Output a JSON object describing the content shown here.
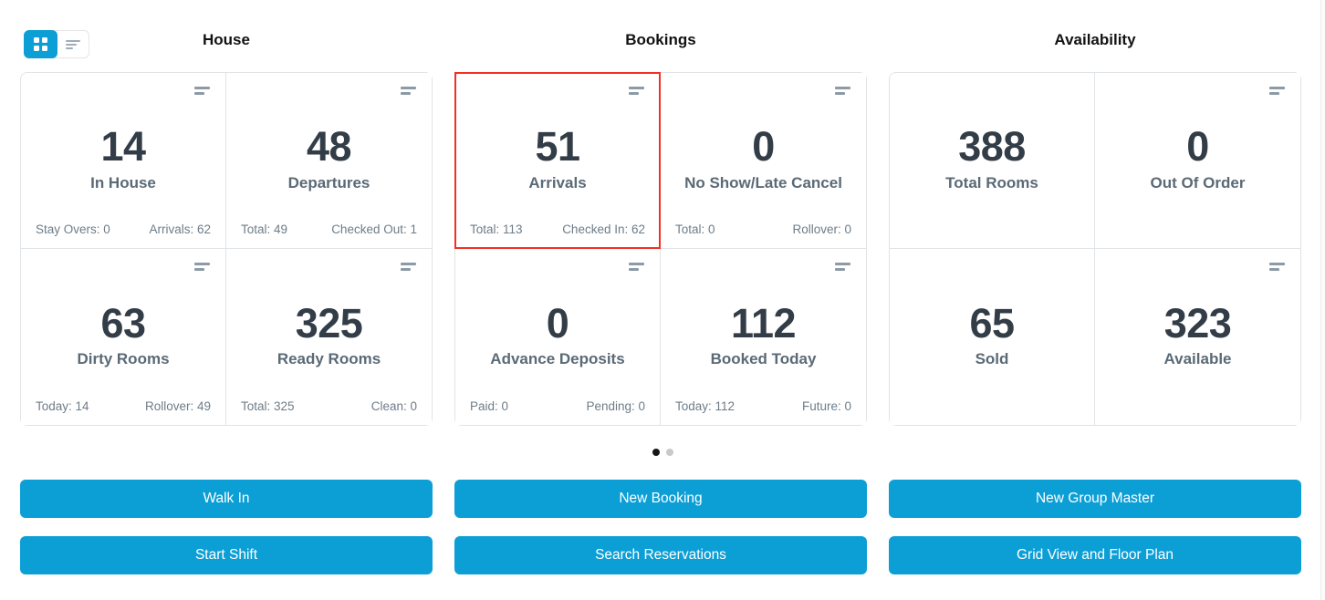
{
  "colors": {
    "accent_blue": "#0c9fd6",
    "highlight_red": "#f43025",
    "value_text": "#333d47",
    "label_text": "#5a6a76"
  },
  "view_toggle": {
    "active": "grid"
  },
  "sections": [
    {
      "title": "House",
      "cards": [
        {
          "value": "14",
          "label": "In House",
          "stat_left": "Stay Overs: 0",
          "stat_right": "Arrivals: 62",
          "icon": true,
          "highlight": false
        },
        {
          "value": "48",
          "label": "Departures",
          "stat_left": "Total: 49",
          "stat_right": "Checked Out: 1",
          "icon": true,
          "highlight": false
        },
        {
          "value": "63",
          "label": "Dirty Rooms",
          "stat_left": "Today: 14",
          "stat_right": "Rollover: 49",
          "icon": true,
          "highlight": false
        },
        {
          "value": "325",
          "label": "Ready Rooms",
          "stat_left": "Total: 325",
          "stat_right": "Clean: 0",
          "icon": true,
          "highlight": false
        }
      ]
    },
    {
      "title": "Bookings",
      "cards": [
        {
          "value": "51",
          "label": "Arrivals",
          "stat_left": "Total: 113",
          "stat_right": "Checked In: 62",
          "icon": true,
          "highlight": true
        },
        {
          "value": "0",
          "label": "No Show/Late Cancel",
          "stat_left": "Total: 0",
          "stat_right": "Rollover: 0",
          "icon": true,
          "highlight": false
        },
        {
          "value": "0",
          "label": "Advance Deposits",
          "stat_left": "Paid: 0",
          "stat_right": "Pending: 0",
          "icon": true,
          "highlight": false
        },
        {
          "value": "112",
          "label": "Booked Today",
          "stat_left": "Today: 112",
          "stat_right": "Future: 0",
          "icon": true,
          "highlight": false
        }
      ]
    },
    {
      "title": "Availability",
      "cards": [
        {
          "value": "388",
          "label": "Total Rooms",
          "icon": false,
          "highlight": false
        },
        {
          "value": "0",
          "label": "Out Of Order",
          "icon": true,
          "highlight": false
        },
        {
          "value": "65",
          "label": "Sold",
          "icon": false,
          "highlight": false
        },
        {
          "value": "323",
          "label": "Available",
          "icon": true,
          "highlight": false
        }
      ]
    }
  ],
  "pagination": {
    "count": 2,
    "active_index": 0
  },
  "actions": [
    "Walk In",
    "New Booking",
    "New Group Master",
    "Start Shift",
    "Search Reservations",
    "Grid View and Floor Plan"
  ]
}
